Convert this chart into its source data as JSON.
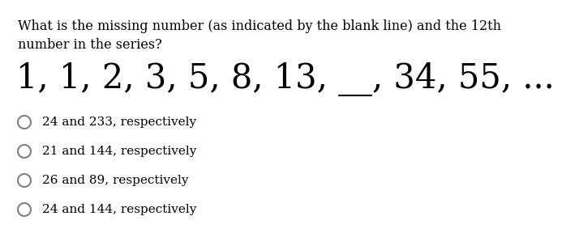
{
  "question_line1": "What is the missing number (as indicated by the blank line) and the 12th",
  "question_line2": "number in the series?",
  "series_display": "1, 1, 2, 3, 5, 8, 13, __, 34, 55, ...",
  "options": [
    "24 and 233, respectively",
    "21 and 144, respectively",
    "26 and 89, respectively",
    "24 and 144, respectively"
  ],
  "bg_color": "#ffffff",
  "text_color": "#000000",
  "circle_color": "#808080",
  "question_fontsize": 11.5,
  "series_fontsize": 30,
  "option_fontsize": 11,
  "font_family": "DejaVu Serif"
}
